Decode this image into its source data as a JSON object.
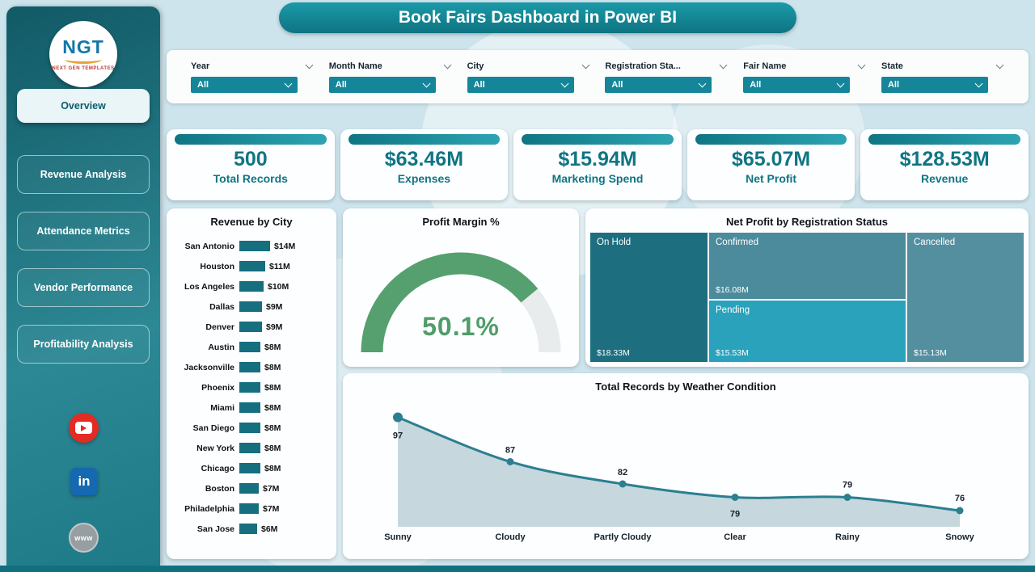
{
  "page": {
    "title": "Book Fairs Dashboard in Power BI"
  },
  "sidebar": {
    "logo": {
      "text": "NGT",
      "subtext": "NEXT GEN TEMPLATES"
    },
    "nav": [
      {
        "label": "Overview",
        "active": true
      },
      {
        "label": "Revenue Analysis",
        "active": false
      },
      {
        "label": "Attendance Metrics",
        "active": false
      },
      {
        "label": "Vendor Performance",
        "active": false
      },
      {
        "label": "Profitability Analysis",
        "active": false
      }
    ],
    "social": [
      {
        "name": "youtube"
      },
      {
        "name": "linkedin",
        "label": "in"
      },
      {
        "name": "website",
        "label": "www"
      }
    ]
  },
  "filters": [
    {
      "label": "Year",
      "value": "All"
    },
    {
      "label": "Month Name",
      "value": "All"
    },
    {
      "label": "City",
      "value": "All"
    },
    {
      "label": "Registration Sta...",
      "value": "All"
    },
    {
      "label": "Fair Name",
      "value": "All"
    },
    {
      "label": "State",
      "value": "All"
    }
  ],
  "kpis": [
    {
      "value": "500",
      "label": "Total Records"
    },
    {
      "value": "$63.46M",
      "label": "Expenses"
    },
    {
      "value": "$15.94M",
      "label": "Marketing Spend"
    },
    {
      "value": "$65.07M",
      "label": "Net Profit"
    },
    {
      "value": "$128.53M",
      "label": "Revenue"
    }
  ],
  "chart_data": [
    {
      "type": "bar",
      "title": "Revenue by City",
      "orientation": "horizontal",
      "categories": [
        "San Antonio",
        "Houston",
        "Los Angeles",
        "Dallas",
        "Denver",
        "Austin",
        "Jacksonville",
        "Phoenix",
        "Miami",
        "San Diego",
        "New York",
        "Chicago",
        "Boston",
        "Philadelphia",
        "San Jose"
      ],
      "values": [
        14,
        11,
        10,
        9,
        9,
        8,
        8,
        8,
        8,
        8,
        8,
        8,
        7,
        7,
        6
      ],
      "value_labels": [
        "$14M",
        "$11M",
        "$10M",
        "$9M",
        "$9M",
        "$8M",
        "$8M",
        "$8M",
        "$8M",
        "$8M",
        "$8M",
        "$8M",
        "$7M",
        "$7M",
        "$6M"
      ],
      "unit": "$M"
    },
    {
      "type": "gauge",
      "title": "Profit Margin %",
      "value": 50.1,
      "value_label": "50.1%",
      "fill_fraction": 0.78
    },
    {
      "type": "treemap",
      "title": "Net Profit by Registration Status",
      "nodes": [
        {
          "label": "On Hold",
          "value": 18.33,
          "value_label": "$18.33M"
        },
        {
          "label": "Confirmed",
          "value": 16.08,
          "value_label": "$16.08M"
        },
        {
          "label": "Pending",
          "value": 15.53,
          "value_label": "$15.53M"
        },
        {
          "label": "Cancelled",
          "value": 15.13,
          "value_label": "$15.13M"
        }
      ]
    },
    {
      "type": "area",
      "title": "Total Records by Weather Condition",
      "categories": [
        "Sunny",
        "Cloudy",
        "Partly Cloudy",
        "Clear",
        "Rainy",
        "Snowy"
      ],
      "values": [
        97,
        87,
        82,
        79,
        79,
        76
      ],
      "ylim": [
        70,
        100
      ],
      "grid": false,
      "legend": "none"
    }
  ],
  "colors": {
    "background": "#cde4ec",
    "accent_teal": "#0f7583",
    "slicer_teal": "#15869a",
    "bar_teal": "#166f7e",
    "gauge_green": "#569f6e",
    "gauge_track": "#e8ecec",
    "line": "#2b7f90",
    "area_fill": "#a9c2cc",
    "treemap_on_hold": "#1d6f80",
    "treemap_confirmed": "#4c8b9c",
    "treemap_pending": "#2aa2bc",
    "treemap_cancelled": "#548fa0",
    "youtube_red": "#e32b23",
    "linkedin_blue": "#1569b0"
  }
}
